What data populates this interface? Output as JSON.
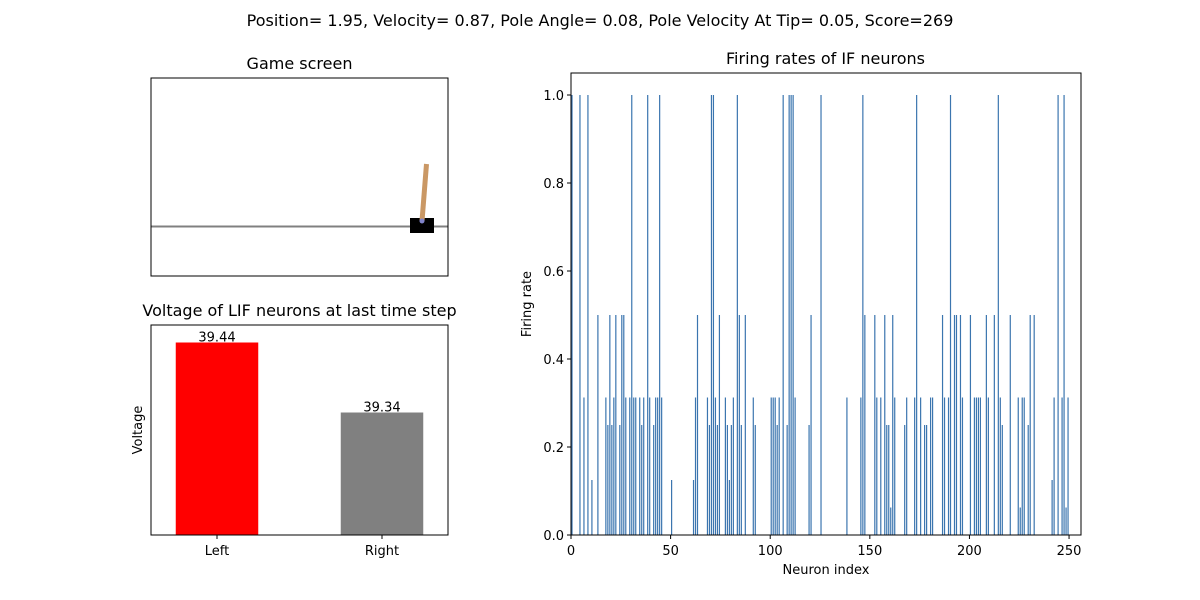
{
  "suptitle": "Position= 1.95, Velocity= 0.87, Pole Angle= 0.08, Pole Velocity At Tip= 0.05, Score=269",
  "game": {
    "title": "Game screen"
  },
  "chart_data": [
    {
      "type": "bar",
      "title": "Voltage of LIF neurons at last time step",
      "xlabel": "",
      "ylabel": "Voltage",
      "categories": [
        "Left",
        "Right"
      ],
      "values": [
        39.44,
        39.34
      ],
      "data_labels": [
        "39.44",
        "39.34"
      ],
      "colors": [
        "#ff0000",
        "#808080"
      ],
      "ylim": [
        39.165,
        39.465
      ]
    },
    {
      "type": "bar",
      "title": "Firing rates of IF neurons",
      "xlabel": "Neuron index",
      "ylabel": "Firing rate",
      "color": "#3b75af",
      "xlim": [
        0,
        256
      ],
      "ylim": [
        0,
        1.0
      ],
      "xticks": [
        "0",
        "50",
        "100",
        "150",
        "200",
        "250"
      ],
      "yticks": [
        "0.0",
        "0.2",
        "0.4",
        "0.6",
        "0.8",
        "1.0"
      ],
      "values": [
        1,
        0,
        0,
        0,
        1,
        0,
        0.3125,
        0,
        1,
        0,
        0.125,
        0,
        0,
        0.5,
        0,
        0,
        0,
        0.3125,
        0.25,
        0.5,
        0.25,
        0.3125,
        0.5,
        0,
        0.25,
        0.5,
        0.5,
        0.3125,
        0,
        0.3125,
        1,
        0.3125,
        0.3125,
        0,
        0.3125,
        0.25,
        0.3125,
        0,
        1,
        0.3125,
        0,
        0.25,
        0.3125,
        0.3125,
        1,
        0.3125,
        0,
        0,
        0,
        0,
        0.125,
        0,
        0,
        0,
        0,
        0,
        0,
        0,
        0,
        0,
        0,
        0.125,
        0.3125,
        0.5,
        0,
        0,
        0,
        0,
        0.3125,
        0.25,
        1,
        1,
        0.3125,
        0.25,
        0.5,
        0,
        0,
        0.3125,
        0.25,
        0.125,
        0.25,
        0.3125,
        0,
        1,
        0.5,
        0.25,
        0,
        0.5,
        0,
        0,
        0,
        0.3125,
        0.25,
        0,
        0,
        0,
        0,
        0,
        0,
        0,
        0.3125,
        0.3125,
        0.3125,
        0.25,
        0.3125,
        0,
        1,
        0,
        0.25,
        1,
        1,
        1,
        0.3125,
        0,
        0,
        0,
        0,
        0,
        0,
        0.25,
        0.5,
        0,
        0,
        0,
        0,
        1,
        0,
        0,
        0,
        0,
        0,
        0,
        0,
        0,
        0,
        0,
        0,
        0,
        0.3125,
        0,
        0,
        0,
        0,
        0,
        0,
        0.3125,
        1,
        0.5,
        0,
        0,
        0,
        0,
        0.5,
        0.3125,
        0,
        0.3125,
        0,
        0.5,
        0.25,
        0.25,
        0.0625,
        0.5,
        0.3125,
        0,
        0,
        0,
        0,
        0.25,
        0.3125,
        0,
        0,
        0,
        0.3125,
        1,
        0,
        0.3125,
        0,
        0.25,
        0.25,
        0,
        0.3125,
        0.3125,
        0,
        0,
        0,
        0,
        0.5,
        0.3125,
        0,
        0.3125,
        1,
        0,
        0.5,
        0.5,
        0,
        0.5,
        0.3125,
        0,
        0,
        0,
        0.5,
        0,
        0.3125,
        0.3125,
        0.3125,
        0.3125,
        0,
        0,
        0.5,
        0.3125,
        0,
        0,
        0.5,
        0,
        1,
        0.3125,
        0.25,
        0,
        0,
        0,
        0.5,
        0,
        0,
        0,
        0.3125,
        0.0625,
        0.3125,
        0.3125,
        0,
        0.25,
        0.5,
        0,
        0.5,
        0,
        0,
        0,
        0,
        0,
        0,
        0,
        0,
        0.125,
        0.3125,
        0,
        1,
        0,
        0.3125,
        1,
        0.0625,
        0.3125
      ]
    }
  ]
}
